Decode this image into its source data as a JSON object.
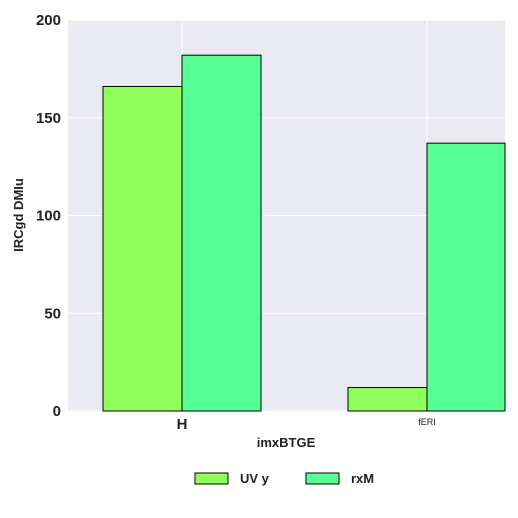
{
  "chart_data": {
    "type": "bar",
    "categories": [
      "H",
      "fERI"
    ],
    "series": [
      {
        "name": "UV y",
        "values": [
          166,
          12
        ],
        "color": "#90ff5a"
      },
      {
        "name": "rxM",
        "values": [
          182,
          137
        ],
        "color": "#58ff94"
      }
    ],
    "xlabel": "imxBTGE",
    "ylabel": "IRCgd DMIu",
    "ylim": [
      0,
      200
    ],
    "yticks": [
      0,
      50,
      100,
      150,
      200
    ],
    "grid": true,
    "background": "#eaeaf2",
    "legend_position": "bottom-center"
  }
}
